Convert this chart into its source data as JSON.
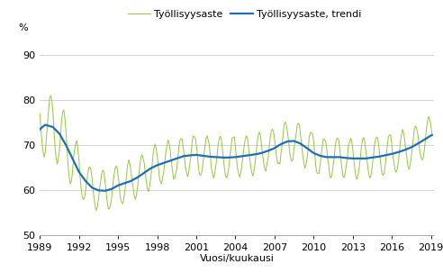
{
  "ylabel": "%",
  "xlabel": "Vuosi/kuukausi",
  "legend_labels": [
    "Työllisyysaste",
    "Työllisyysaste, trendi"
  ],
  "line_color_raw": "#92c83e",
  "line_color_trend": "#1f6db5",
  "ylim": [
    50,
    95
  ],
  "yticks": [
    50,
    60,
    70,
    80,
    90
  ],
  "xtick_years": [
    1989,
    1992,
    1995,
    1998,
    2001,
    2004,
    2007,
    2010,
    2013,
    2016,
    2019
  ],
  "background_color": "#ffffff",
  "grid_color": "#bfbfbf",
  "raw_linewidth": 0.7,
  "trend_linewidth": 1.6,
  "label_fontsize": 8,
  "tick_fontsize": 8,
  "legend_fontsize": 8
}
